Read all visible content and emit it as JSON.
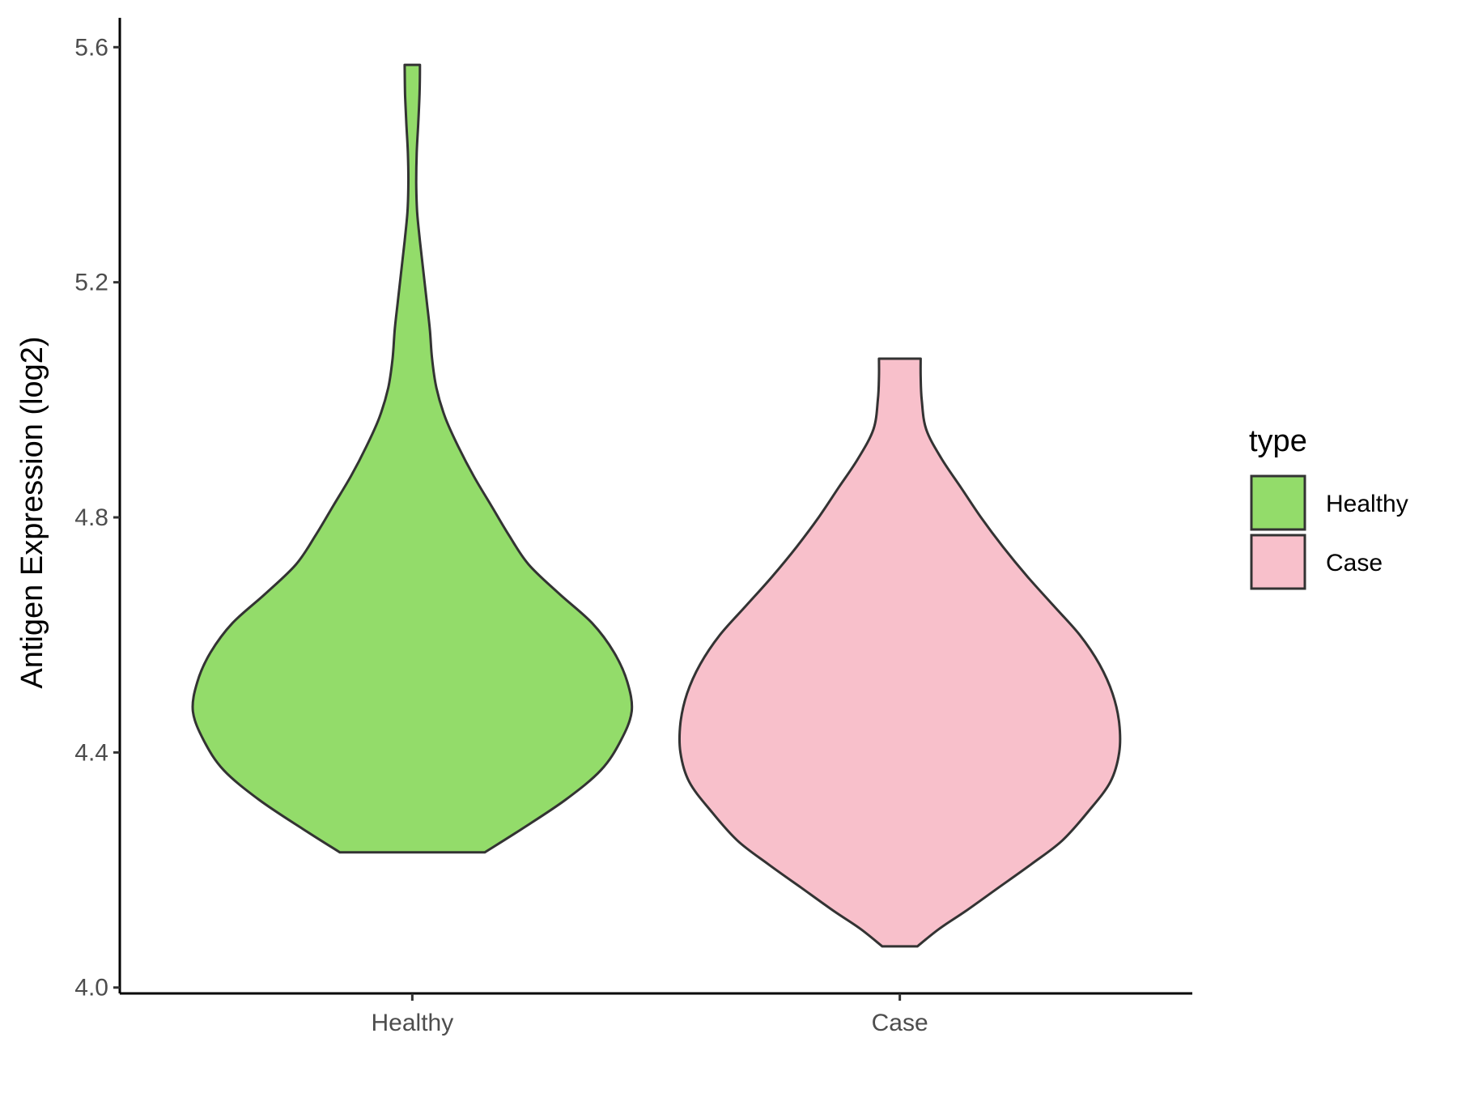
{
  "chart_data": {
    "type": "violin",
    "title": "",
    "xlabel": "",
    "ylabel": "Antigen Expression (log2)",
    "ylim": [
      3.99,
      5.65
    ],
    "y_ticks": [
      4.0,
      4.4,
      4.8,
      5.2,
      5.6
    ],
    "y_tick_labels": [
      "4.0",
      "4.4",
      "4.8",
      "5.2",
      "5.6"
    ],
    "categories": [
      "Healthy",
      "Case"
    ],
    "grid": false,
    "legend": {
      "title": "type",
      "position": "right",
      "entries": [
        {
          "label": "Healthy",
          "color": "#93DC6A"
        },
        {
          "label": "Case",
          "color": "#F8C0CB"
        }
      ]
    },
    "series": [
      {
        "category": "Healthy",
        "color": "#93DC6A",
        "min": 4.23,
        "max": 5.57,
        "density_profile": [
          [
            4.23,
            0.33
          ],
          [
            4.27,
            0.5
          ],
          [
            4.32,
            0.7
          ],
          [
            4.37,
            0.86
          ],
          [
            4.42,
            0.95
          ],
          [
            4.47,
            1.0
          ],
          [
            4.52,
            0.98
          ],
          [
            4.57,
            0.92
          ],
          [
            4.62,
            0.82
          ],
          [
            4.67,
            0.67
          ],
          [
            4.72,
            0.53
          ],
          [
            4.77,
            0.44
          ],
          [
            4.82,
            0.36
          ],
          [
            4.87,
            0.28
          ],
          [
            4.92,
            0.21
          ],
          [
            4.97,
            0.15
          ],
          [
            5.02,
            0.11
          ],
          [
            5.07,
            0.09
          ],
          [
            5.12,
            0.08
          ],
          [
            5.17,
            0.065
          ],
          [
            5.22,
            0.05
          ],
          [
            5.27,
            0.035
          ],
          [
            5.32,
            0.022
          ],
          [
            5.37,
            0.018
          ],
          [
            5.42,
            0.02
          ],
          [
            5.47,
            0.027
          ],
          [
            5.52,
            0.033
          ],
          [
            5.57,
            0.035
          ]
        ]
      },
      {
        "category": "Case",
        "color": "#F8C0CB",
        "min": 4.07,
        "max": 5.07,
        "density_profile": [
          [
            4.07,
            0.08
          ],
          [
            4.1,
            0.18
          ],
          [
            4.13,
            0.3
          ],
          [
            4.17,
            0.45
          ],
          [
            4.21,
            0.6
          ],
          [
            4.25,
            0.74
          ],
          [
            4.3,
            0.86
          ],
          [
            4.35,
            0.96
          ],
          [
            4.4,
            1.0
          ],
          [
            4.45,
            1.0
          ],
          [
            4.5,
            0.97
          ],
          [
            4.55,
            0.91
          ],
          [
            4.6,
            0.82
          ],
          [
            4.65,
            0.7
          ],
          [
            4.7,
            0.58
          ],
          [
            4.75,
            0.47
          ],
          [
            4.8,
            0.37
          ],
          [
            4.85,
            0.28
          ],
          [
            4.9,
            0.19
          ],
          [
            4.95,
            0.12
          ],
          [
            5.0,
            0.1
          ],
          [
            5.04,
            0.095
          ],
          [
            5.07,
            0.095
          ]
        ]
      }
    ]
  }
}
